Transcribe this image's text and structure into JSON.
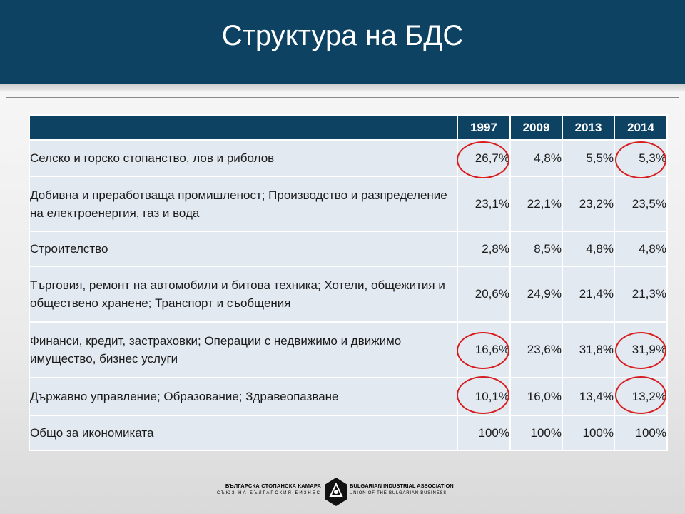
{
  "slide": {
    "title": "Структура на БДС"
  },
  "table": {
    "headers": [
      "",
      "1997",
      "2009",
      "2013",
      "2014"
    ],
    "rows": [
      {
        "label": "Селско и горско стопанство, лов и риболов",
        "values": [
          "26,7%",
          "4,8%",
          "5,5%",
          "5,3%"
        ]
      },
      {
        "label": "Добивна и преработваща промишленост; Производство и разпределение на електроенергия, газ и вода",
        "values": [
          "23,1%",
          "22,1%",
          "23,2%",
          "23,5%"
        ]
      },
      {
        "label": "Строителство",
        "values": [
          "2,8%",
          "8,5%",
          "4,8%",
          "4,8%"
        ]
      },
      {
        "label": "Търговия, ремонт на автомобили и битова техника; Хотели, общежития и обществено хранене; Транспорт и съобщения",
        "values": [
          "20,6%",
          "24,9%",
          "21,4%",
          "21,3%"
        ]
      },
      {
        "label": "Финанси, кредит, застраховки; Операции с недвижимо и движимо имущество, бизнес услуги",
        "values": [
          "16,6%",
          "23,6%",
          "31,8%",
          "31,9%"
        ]
      },
      {
        "label": "Държавно управление; Образование; Здравеопазване",
        "values": [
          "10,1%",
          "16,0%",
          "13,4%",
          "13,2%"
        ]
      },
      {
        "label": "Общо за икономиката",
        "values": [
          "100%",
          "100%",
          "100%",
          "100%"
        ]
      }
    ],
    "highlight_color": "#d81e1e"
  },
  "logo": {
    "bg_name": "БЪЛГАРСКА СТОПАНСКА КАМАРА",
    "bg_sub": "СЪЮЗ НА БЪЛГАРСКИЯ БИЗНЕС",
    "en_name": "BULGARIAN INDUSTRIAL ASSOCIATION",
    "en_sub": "UNION OF THE BULGARIAN BUSINESS"
  },
  "colors": {
    "header_bg": "#0d4263",
    "cell_bg": "#e3e9f1"
  }
}
